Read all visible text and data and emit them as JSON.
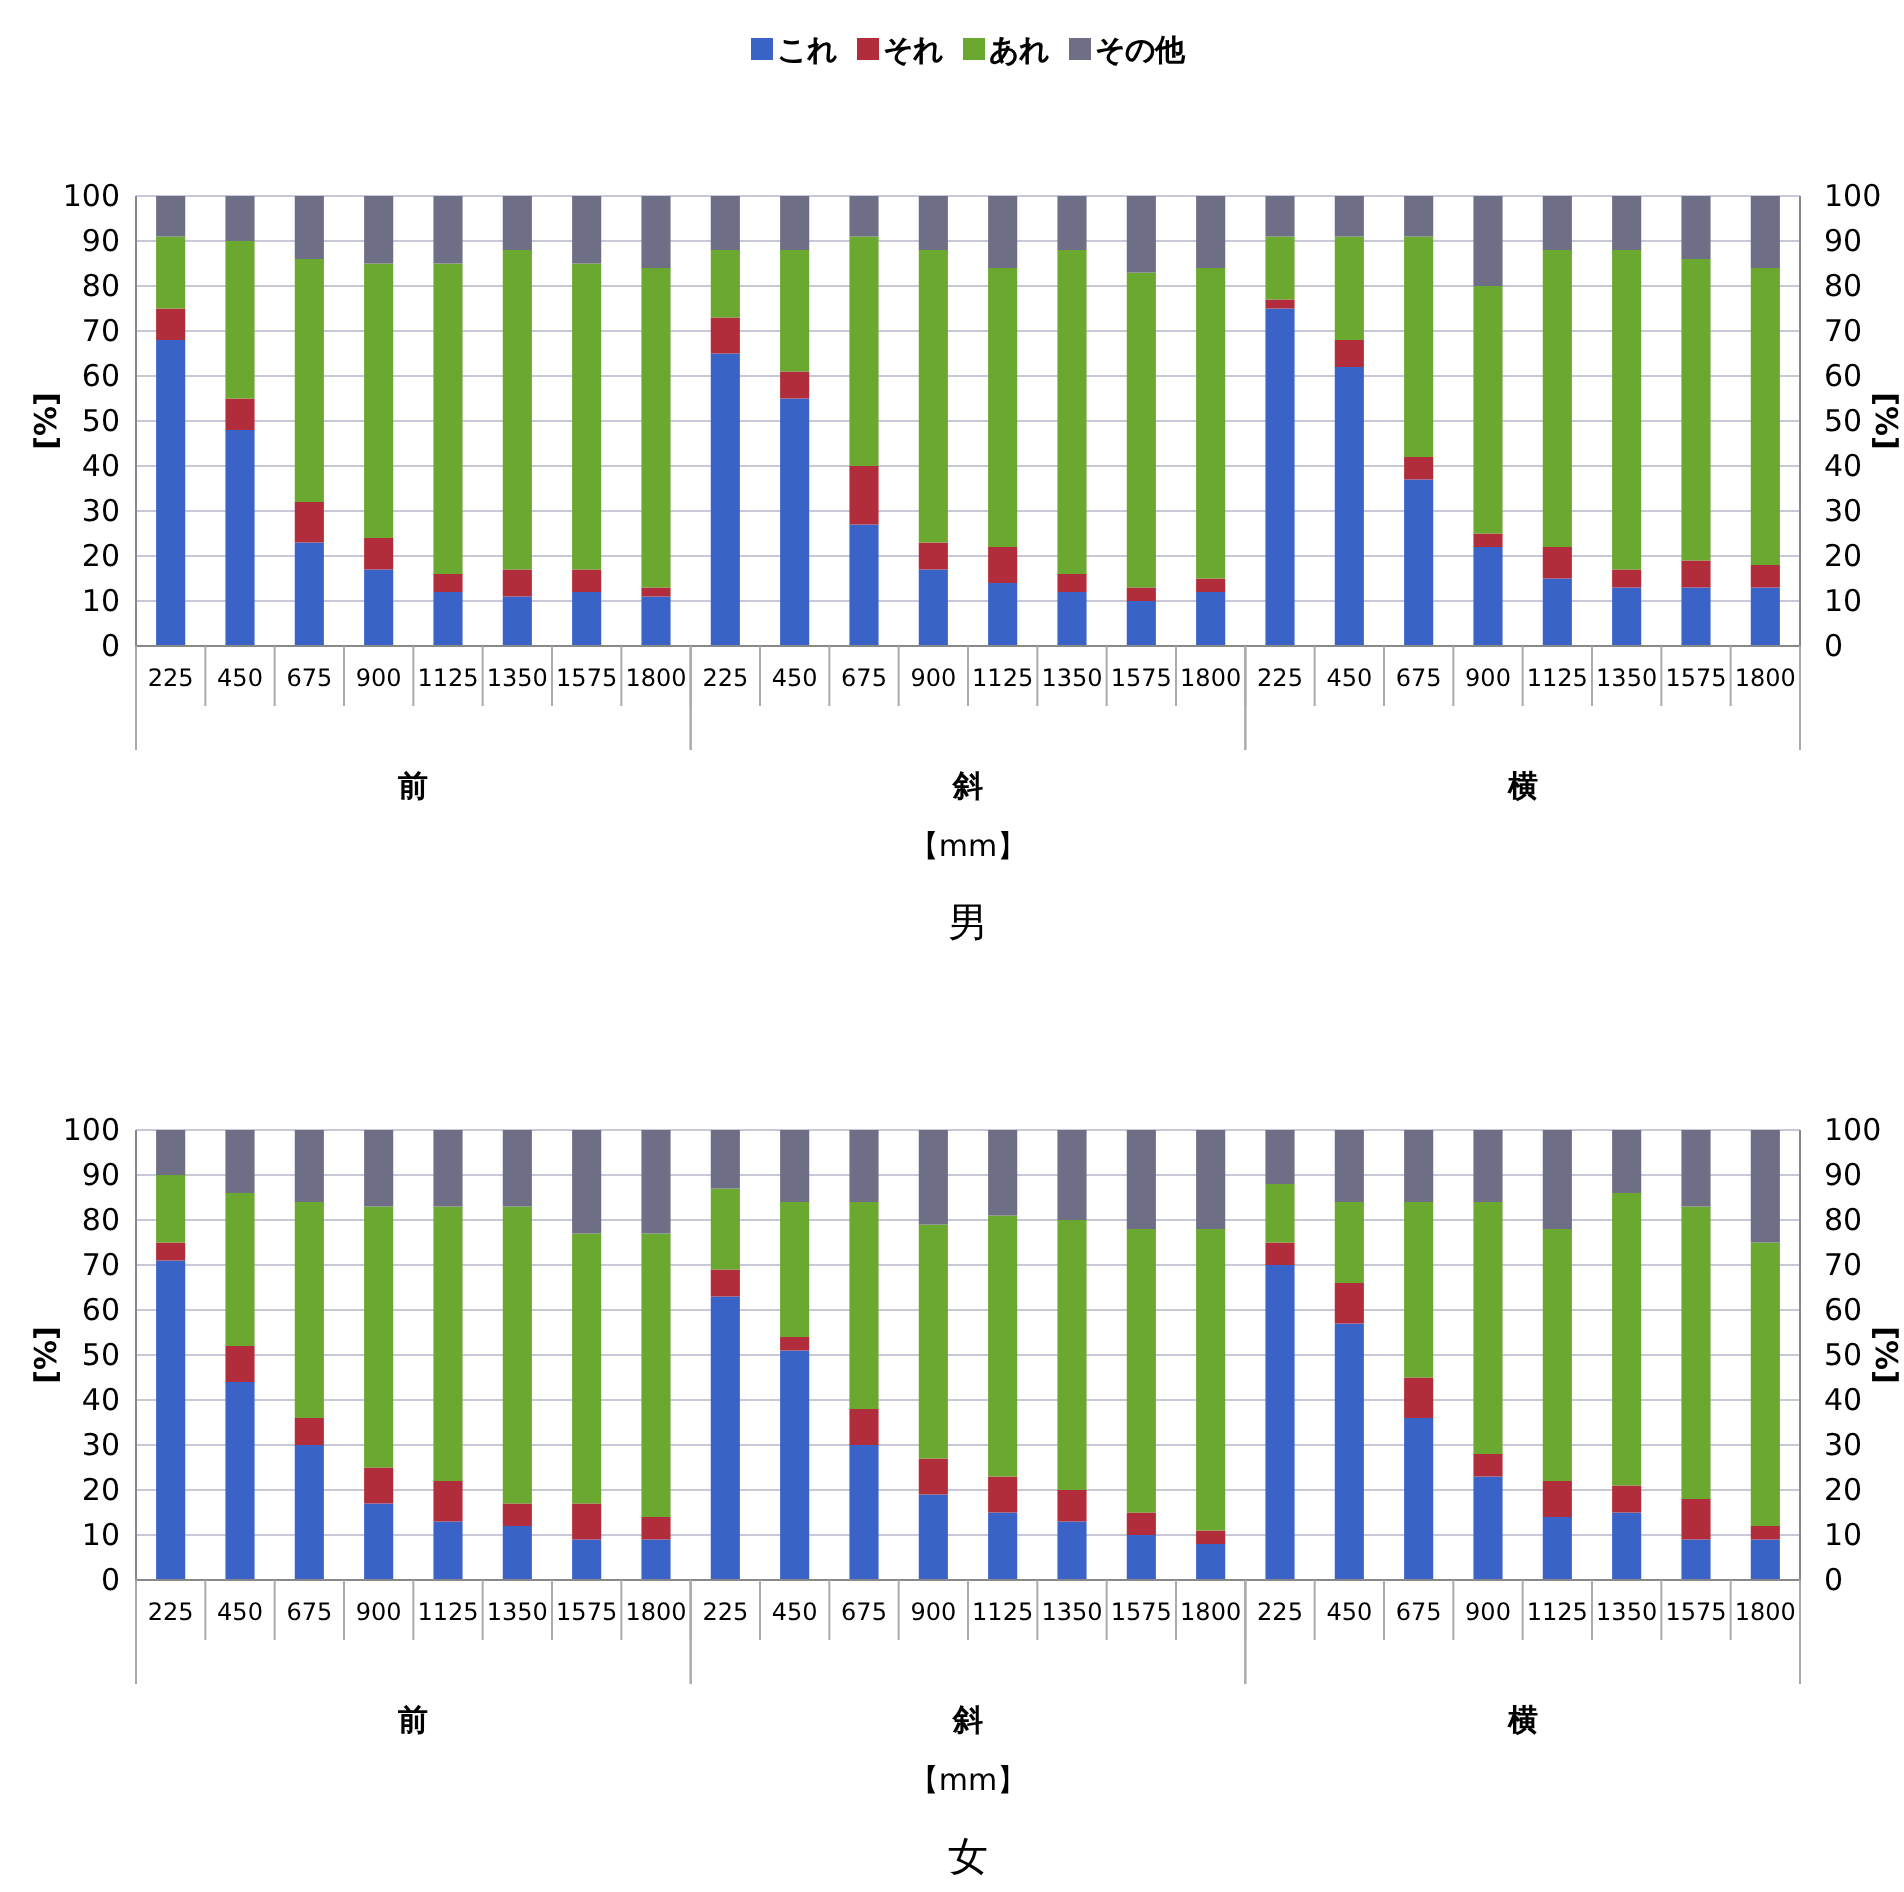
{
  "chart_data": [
    {
      "type": "bar",
      "stacked": true,
      "legend": "top",
      "grid": "y",
      "title": "男",
      "xlabel": "【mm】",
      "ylabel": "[%]",
      "y2label": "[%]",
      "annotations": [
        "前",
        "斜",
        "横"
      ],
      "categories": [
        "225",
        "450",
        "675",
        "900",
        "1125",
        "1350",
        "1575",
        "1800",
        "225",
        "450",
        "675",
        "900",
        "1125",
        "1350",
        "1575",
        "1800",
        "225",
        "450",
        "675",
        "900",
        "1125",
        "1350",
        "1575",
        "1800"
      ],
      "ylim": [
        0,
        100
      ],
      "yticks": [
        0,
        10,
        20,
        30,
        40,
        50,
        60,
        70,
        80,
        90,
        100
      ],
      "y2lim": [
        0,
        100
      ],
      "y2ticks": [
        0,
        10,
        20,
        30,
        40,
        50,
        60,
        70,
        80,
        90,
        100
      ],
      "series": [
        {
          "name": "これ",
          "color": "#3a63c8",
          "values": [
            68,
            48,
            23,
            17,
            12,
            11,
            12,
            11,
            65,
            55,
            27,
            17,
            14,
            12,
            10,
            12,
            75,
            62,
            37,
            22,
            15,
            13,
            13,
            13
          ]
        },
        {
          "name": "それ",
          "color": "#b22d3c",
          "values": [
            7,
            7,
            9,
            7,
            4,
            6,
            5,
            2,
            8,
            6,
            13,
            6,
            8,
            4,
            3,
            3,
            2,
            6,
            5,
            3,
            7,
            4,
            6,
            5
          ]
        },
        {
          "name": "あれ",
          "color": "#6aa82f",
          "values": [
            16,
            35,
            54,
            61,
            69,
            71,
            68,
            71,
            15,
            27,
            51,
            65,
            62,
            72,
            70,
            69,
            14,
            23,
            49,
            55,
            66,
            71,
            67,
            66
          ]
        },
        {
          "name": "その他",
          "color": "#6e6e86",
          "values": [
            9,
            10,
            14,
            15,
            15,
            12,
            15,
            16,
            12,
            12,
            9,
            12,
            16,
            12,
            17,
            16,
            9,
            9,
            9,
            20,
            12,
            12,
            14,
            16
          ]
        }
      ]
    },
    {
      "type": "bar",
      "stacked": true,
      "grid": "y",
      "title": "女",
      "xlabel": "【mm】",
      "ylabel": "[%]",
      "y2label": "[%]",
      "annotations": [
        "前",
        "斜",
        "横"
      ],
      "categories": [
        "225",
        "450",
        "675",
        "900",
        "1125",
        "1350",
        "1575",
        "1800",
        "225",
        "450",
        "675",
        "900",
        "1125",
        "1350",
        "1575",
        "1800",
        "225",
        "450",
        "675",
        "900",
        "1125",
        "1350",
        "1575",
        "1800"
      ],
      "ylim": [
        0,
        100
      ],
      "yticks": [
        0,
        10,
        20,
        30,
        40,
        50,
        60,
        70,
        80,
        90,
        100
      ],
      "y2lim": [
        0,
        100
      ],
      "y2ticks": [
        0,
        10,
        20,
        30,
        40,
        50,
        60,
        70,
        80,
        90,
        100
      ],
      "series": [
        {
          "color": "#3a63c8",
          "values": [
            71,
            44,
            30,
            17,
            13,
            12,
            9,
            9,
            63,
            51,
            30,
            19,
            15,
            13,
            10,
            8,
            70,
            57,
            36,
            23,
            14,
            15,
            9,
            9
          ]
        },
        {
          "color": "#b22d3c",
          "values": [
            4,
            8,
            6,
            8,
            9,
            5,
            8,
            5,
            6,
            3,
            8,
            8,
            8,
            7,
            5,
            3,
            5,
            9,
            9,
            5,
            8,
            6,
            9,
            3
          ]
        },
        {
          "color": "#6aa82f",
          "values": [
            15,
            34,
            48,
            58,
            61,
            66,
            60,
            63,
            18,
            30,
            46,
            52,
            58,
            60,
            63,
            67,
            13,
            18,
            39,
            56,
            56,
            65,
            65,
            63
          ]
        },
        {
          "color": "#6e6e86",
          "values": [
            10,
            14,
            16,
            17,
            17,
            17,
            23,
            23,
            13,
            16,
            16,
            21,
            19,
            20,
            22,
            22,
            12,
            16,
            16,
            16,
            22,
            14,
            17,
            25
          ]
        }
      ]
    }
  ]
}
